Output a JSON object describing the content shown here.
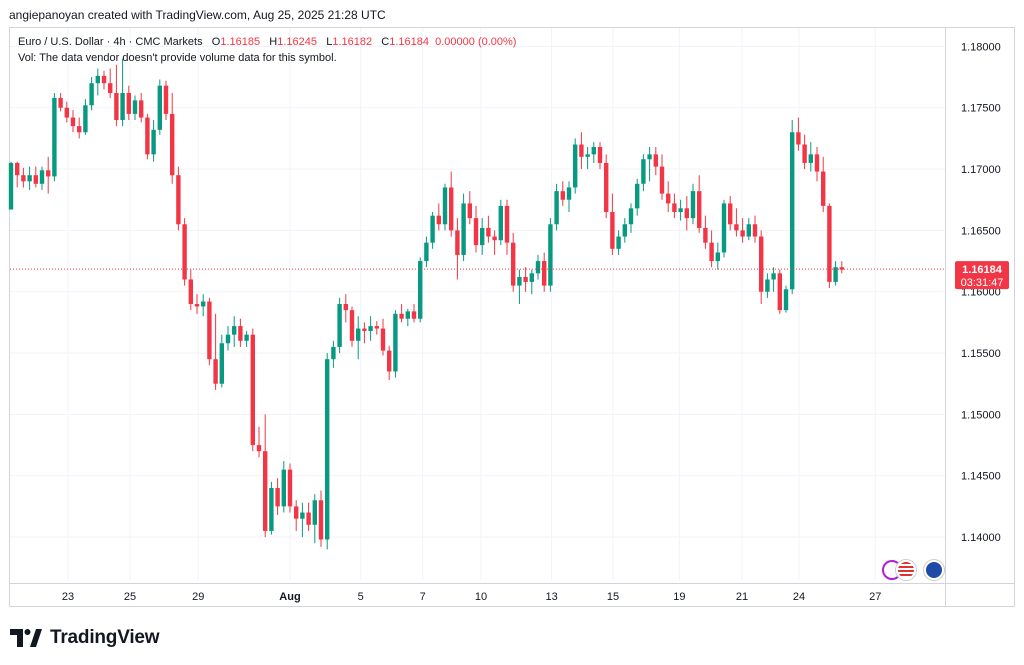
{
  "header": {
    "credit": "angiepanoyan created with TradingView.com, Aug 25, 2025 21:28 UTC"
  },
  "legend": {
    "symbol": "Euro / U.S. Dollar · 4h · CMC Markets",
    "o_label": "O",
    "o_value": "1.16185",
    "h_label": "H",
    "h_value": "1.16245",
    "l_label": "L",
    "l_value": "1.16182",
    "c_label": "C",
    "c_value": "1.16184",
    "change": "0.00000 (0.00%)",
    "volume_note": "Vol: The data vendor doesn't provide volume data for this symbol."
  },
  "price_tag": {
    "price": "1.16184",
    "countdown": "03:31:47"
  },
  "footer": {
    "brand": "TradingView"
  },
  "colors": {
    "up": "#089981",
    "down": "#f23645",
    "grid": "#f0f3fa",
    "axis_text": "#131722"
  },
  "chart_data": {
    "type": "candlestick",
    "title": "Euro / U.S. Dollar · 4h · CMC Markets",
    "ylim": [
      1.1365,
      1.1815
    ],
    "y_ticks": [
      "1.18000",
      "1.17500",
      "1.17000",
      "1.16500",
      "1.16000",
      "1.15500",
      "1.15000",
      "1.14500",
      "1.14000"
    ],
    "x_ticks": [
      {
        "label": "23",
        "bold": false,
        "t": 9.2
      },
      {
        "label": "25",
        "bold": false,
        "t": 19.2
      },
      {
        "label": "29",
        "bold": false,
        "t": 30.2
      },
      {
        "label": "Aug",
        "bold": true,
        "t": 45.0
      },
      {
        "label": "5",
        "bold": false,
        "t": 56.4
      },
      {
        "label": "7",
        "bold": false,
        "t": 66.4
      },
      {
        "label": "10",
        "bold": false,
        "t": 75.8
      },
      {
        "label": "13",
        "bold": false,
        "t": 87.2
      },
      {
        "label": "15",
        "bold": false,
        "t": 97.1
      },
      {
        "label": "19",
        "bold": false,
        "t": 107.8
      },
      {
        "label": "21",
        "bold": false,
        "t": 117.9
      },
      {
        "label": "24",
        "bold": false,
        "t": 127.1
      },
      {
        "label": "27",
        "bold": false,
        "t": 139.4
      }
    ],
    "last_price": 1.16184,
    "candles": [
      [
        1.1667,
        1.1706,
        1.1667,
        1.1705
      ],
      [
        1.1705,
        1.1706,
        1.1685,
        1.1695
      ],
      [
        1.1695,
        1.1701,
        1.1685,
        1.169
      ],
      [
        1.169,
        1.1702,
        1.1683,
        1.1695
      ],
      [
        1.1695,
        1.1702,
        1.1685,
        1.1688
      ],
      [
        1.1688,
        1.1702,
        1.1683,
        1.1699
      ],
      [
        1.1699,
        1.171,
        1.168,
        1.1694
      ],
      [
        1.1694,
        1.1762,
        1.169,
        1.1758
      ],
      [
        1.1758,
        1.1762,
        1.1747,
        1.175
      ],
      [
        1.175,
        1.1755,
        1.1738,
        1.1742
      ],
      [
        1.1742,
        1.1748,
        1.173,
        1.1735
      ],
      [
        1.1735,
        1.1742,
        1.1725,
        1.173
      ],
      [
        1.173,
        1.1757,
        1.1728,
        1.1752
      ],
      [
        1.1752,
        1.1775,
        1.1748,
        1.177
      ],
      [
        1.177,
        1.1782,
        1.176,
        1.1776
      ],
      [
        1.1776,
        1.178,
        1.1765,
        1.177
      ],
      [
        1.177,
        1.1782,
        1.1758,
        1.1762
      ],
      [
        1.1762,
        1.1785,
        1.1735,
        1.174
      ],
      [
        1.174,
        1.179,
        1.1735,
        1.1762
      ],
      [
        1.1762,
        1.1768,
        1.174,
        1.1745
      ],
      [
        1.1745,
        1.176,
        1.174,
        1.1756
      ],
      [
        1.1756,
        1.1762,
        1.1738,
        1.1742
      ],
      [
        1.1742,
        1.1745,
        1.1708,
        1.1712
      ],
      [
        1.1712,
        1.174,
        1.1706,
        1.1732
      ],
      [
        1.1732,
        1.1773,
        1.1728,
        1.1768
      ],
      [
        1.1768,
        1.1772,
        1.174,
        1.1745
      ],
      [
        1.1745,
        1.1762,
        1.1688,
        1.1695
      ],
      [
        1.1695,
        1.1702,
        1.165,
        1.1655
      ],
      [
        1.1655,
        1.166,
        1.1605,
        1.161
      ],
      [
        1.161,
        1.1618,
        1.1585,
        1.159
      ],
      [
        1.159,
        1.1598,
        1.1582,
        1.1588
      ],
      [
        1.1588,
        1.1598,
        1.158,
        1.1592
      ],
      [
        1.1592,
        1.1595,
        1.154,
        1.1545
      ],
      [
        1.1545,
        1.1582,
        1.152,
        1.1525
      ],
      [
        1.1525,
        1.1565,
        1.1522,
        1.1558
      ],
      [
        1.1558,
        1.1572,
        1.1552,
        1.1565
      ],
      [
        1.1565,
        1.158,
        1.1555,
        1.1572
      ],
      [
        1.1572,
        1.1578,
        1.1555,
        1.156
      ],
      [
        1.156,
        1.1568,
        1.1555,
        1.1565
      ],
      [
        1.1565,
        1.157,
        1.147,
        1.1475
      ],
      [
        1.1475,
        1.149,
        1.1465,
        1.147
      ],
      [
        1.147,
        1.15,
        1.14,
        1.1405
      ],
      [
        1.1405,
        1.1445,
        1.1402,
        1.144
      ],
      [
        1.144,
        1.1448,
        1.1418,
        1.1425
      ],
      [
        1.1425,
        1.1462,
        1.142,
        1.1455
      ],
      [
        1.1455,
        1.146,
        1.142,
        1.1425
      ],
      [
        1.1425,
        1.143,
        1.1405,
        1.1415
      ],
      [
        1.1415,
        1.1428,
        1.14,
        1.142
      ],
      [
        1.142,
        1.1428,
        1.1405,
        1.141
      ],
      [
        1.141,
        1.1435,
        1.1395,
        1.143
      ],
      [
        1.143,
        1.1438,
        1.1392,
        1.1398
      ],
      [
        1.1398,
        1.155,
        1.139,
        1.1545
      ],
      [
        1.1545,
        1.156,
        1.1538,
        1.1555
      ],
      [
        1.1555,
        1.1595,
        1.155,
        1.159
      ],
      [
        1.159,
        1.1598,
        1.1575,
        1.1585
      ],
      [
        1.1585,
        1.1588,
        1.1555,
        1.156
      ],
      [
        1.156,
        1.158,
        1.1545,
        1.157
      ],
      [
        1.157,
        1.1575,
        1.1558,
        1.1568
      ],
      [
        1.1568,
        1.158,
        1.156,
        1.1572
      ],
      [
        1.1572,
        1.1576,
        1.1565,
        1.157
      ],
      [
        1.157,
        1.1578,
        1.1548,
        1.1552
      ],
      [
        1.1552,
        1.1556,
        1.1528,
        1.1535
      ],
      [
        1.1535,
        1.1585,
        1.153,
        1.1582
      ],
      [
        1.1582,
        1.159,
        1.1575,
        1.1578
      ],
      [
        1.1578,
        1.1586,
        1.1572,
        1.1584
      ],
      [
        1.1584,
        1.159,
        1.1575,
        1.1578
      ],
      [
        1.1578,
        1.1628,
        1.1575,
        1.1625
      ],
      [
        1.1625,
        1.1645,
        1.162,
        1.164
      ],
      [
        1.164,
        1.1665,
        1.1635,
        1.1662
      ],
      [
        1.1662,
        1.1672,
        1.165,
        1.1655
      ],
      [
        1.1655,
        1.1688,
        1.165,
        1.1685
      ],
      [
        1.1685,
        1.1698,
        1.1645,
        1.165
      ],
      [
        1.165,
        1.166,
        1.161,
        1.163
      ],
      [
        1.163,
        1.168,
        1.1625,
        1.1672
      ],
      [
        1.1672,
        1.1682,
        1.1655,
        1.166
      ],
      [
        1.166,
        1.167,
        1.1632,
        1.1638
      ],
      [
        1.1638,
        1.166,
        1.163,
        1.1652
      ],
      [
        1.1652,
        1.1662,
        1.164,
        1.1645
      ],
      [
        1.1645,
        1.165,
        1.163,
        1.1642
      ],
      [
        1.1642,
        1.1675,
        1.1638,
        1.167
      ],
      [
        1.167,
        1.1675,
        1.163,
        1.164
      ],
      [
        1.164,
        1.1648,
        1.16,
        1.1605
      ],
      [
        1.1605,
        1.1618,
        1.159,
        1.1612
      ],
      [
        1.1612,
        1.162,
        1.16,
        1.1608
      ],
      [
        1.1608,
        1.1618,
        1.1598,
        1.1615
      ],
      [
        1.1615,
        1.163,
        1.161,
        1.1625
      ],
      [
        1.1625,
        1.1632,
        1.16,
        1.1605
      ],
      [
        1.1605,
        1.166,
        1.16,
        1.1655
      ],
      [
        1.1655,
        1.1688,
        1.165,
        1.1682
      ],
      [
        1.1682,
        1.169,
        1.167,
        1.1675
      ],
      [
        1.1675,
        1.169,
        1.1665,
        1.1685
      ],
      [
        1.1685,
        1.1725,
        1.168,
        1.172
      ],
      [
        1.172,
        1.173,
        1.17,
        1.171
      ],
      [
        1.171,
        1.1718,
        1.17,
        1.1712
      ],
      [
        1.1712,
        1.1722,
        1.1705,
        1.1718
      ],
      [
        1.1718,
        1.1722,
        1.17,
        1.1705
      ],
      [
        1.1705,
        1.1712,
        1.166,
        1.1665
      ],
      [
        1.1665,
        1.168,
        1.163,
        1.1635
      ],
      [
        1.1635,
        1.165,
        1.163,
        1.1645
      ],
      [
        1.1645,
        1.166,
        1.164,
        1.1655
      ],
      [
        1.1655,
        1.1672,
        1.1648,
        1.1668
      ],
      [
        1.1668,
        1.1692,
        1.1662,
        1.1688
      ],
      [
        1.1688,
        1.1712,
        1.1682,
        1.1708
      ],
      [
        1.1708,
        1.1718,
        1.169,
        1.1712
      ],
      [
        1.1712,
        1.1718,
        1.1695,
        1.1702
      ],
      [
        1.1702,
        1.1712,
        1.1675,
        1.168
      ],
      [
        1.168,
        1.169,
        1.1665,
        1.1672
      ],
      [
        1.1672,
        1.168,
        1.166,
        1.1665
      ],
      [
        1.1665,
        1.1675,
        1.1658,
        1.1668
      ],
      [
        1.1668,
        1.1678,
        1.165,
        1.166
      ],
      [
        1.166,
        1.1688,
        1.1655,
        1.1682
      ],
      [
        1.1682,
        1.1695,
        1.1648,
        1.1652
      ],
      [
        1.1652,
        1.1662,
        1.1635,
        1.164
      ],
      [
        1.164,
        1.165,
        1.162,
        1.1625
      ],
      [
        1.1625,
        1.164,
        1.1618,
        1.1632
      ],
      [
        1.1632,
        1.1675,
        1.1628,
        1.1672
      ],
      [
        1.1672,
        1.1678,
        1.165,
        1.1655
      ],
      [
        1.1655,
        1.1668,
        1.1645,
        1.165
      ],
      [
        1.165,
        1.166,
        1.164,
        1.1645
      ],
      [
        1.1645,
        1.166,
        1.1642,
        1.1655
      ],
      [
        1.1655,
        1.1662,
        1.164,
        1.1645
      ],
      [
        1.1645,
        1.165,
        1.159,
        1.16
      ],
      [
        1.16,
        1.1615,
        1.1595,
        1.161
      ],
      [
        1.161,
        1.162,
        1.16,
        1.1615
      ],
      [
        1.1615,
        1.1618,
        1.1582,
        1.1585
      ],
      [
        1.1585,
        1.1605,
        1.1583,
        1.1602
      ],
      [
        1.1602,
        1.174,
        1.1598,
        1.173
      ],
      [
        1.173,
        1.1742,
        1.1715,
        1.172
      ],
      [
        1.172,
        1.1728,
        1.17,
        1.1705
      ],
      [
        1.1705,
        1.1722,
        1.1698,
        1.1712
      ],
      [
        1.1712,
        1.1718,
        1.169,
        1.1698
      ],
      [
        1.1698,
        1.171,
        1.1665,
        1.167
      ],
      [
        1.167,
        1.1672,
        1.1603,
        1.1608
      ],
      [
        1.1608,
        1.1625,
        1.1605,
        1.162
      ],
      [
        1.162,
        1.1625,
        1.1615,
        1.1618
      ]
    ]
  }
}
